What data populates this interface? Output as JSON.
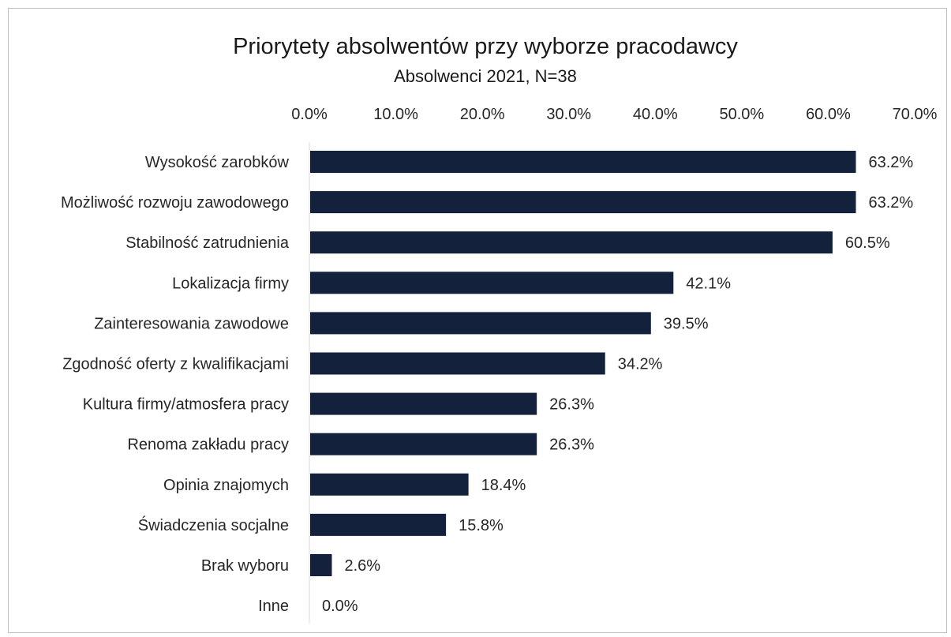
{
  "chart_data": {
    "type": "bar",
    "orientation": "horizontal",
    "title": "Priorytety absolwentów przy wyborze pracodawcy",
    "subtitle": "Absolwenci 2021, N=38",
    "categories": [
      "Wysokość zarobków",
      "Możliwość rozwoju zawodowego",
      "Stabilność zatrudnienia",
      "Lokalizacja firmy",
      "Zainteresowania zawodowe",
      "Zgodność oferty z kwalifikacjami",
      "Kultura firmy/atmosfera pracy",
      "Renoma zakładu pracy",
      "Opinia znajomych",
      "Świadczenia socjalne",
      "Brak wyboru",
      "Inne"
    ],
    "values": [
      63.2,
      63.2,
      60.5,
      42.1,
      39.5,
      34.2,
      26.3,
      26.3,
      18.4,
      15.8,
      2.6,
      0.0
    ],
    "value_labels": [
      "63.2%",
      "63.2%",
      "60.5%",
      "42.1%",
      "39.5%",
      "34.2%",
      "26.3%",
      "26.3%",
      "18.4%",
      "15.8%",
      "2.6%",
      "0.0%"
    ],
    "xlim": [
      0,
      70
    ],
    "x_ticks": [
      0,
      10,
      20,
      30,
      40,
      50,
      60,
      70
    ],
    "x_tick_labels": [
      "0.0%",
      "10.0%",
      "20.0%",
      "30.0%",
      "40.0%",
      "50.0%",
      "60.0%",
      "70.0%"
    ],
    "x_axis_position": "top",
    "grid": false,
    "legend": "none",
    "bar_color": "#14213d",
    "axis_color": "#d9d9d9"
  }
}
